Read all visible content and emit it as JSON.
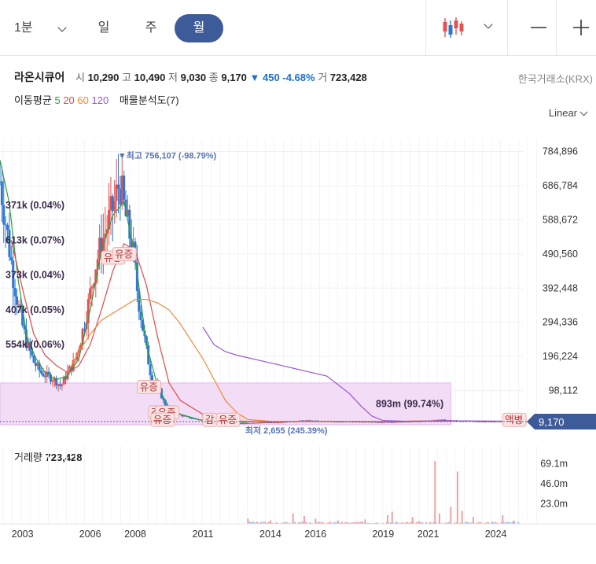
{
  "toolbar": {
    "period_select": "1분",
    "tabs": [
      "일",
      "주",
      "월"
    ],
    "active_tab": "월"
  },
  "stock": {
    "name": "라온시큐어",
    "open_label": "시",
    "open": "10,290",
    "high_label": "고",
    "high": "10,490",
    "low_label": "저",
    "low": "9,030",
    "close_label": "종",
    "close": "9,170",
    "change_arrow": "▼",
    "change": "450",
    "change_pct": "-4.68%",
    "volume_label": "거",
    "volume": "723,428",
    "exchange": "한국거래소(KRX)"
  },
  "indicators": {
    "ma_label": "이동평균",
    "ma_periods": [
      "5",
      "20",
      "60",
      "120"
    ],
    "ma_colors": [
      "#2e9d3c",
      "#e24a4a",
      "#f08a34",
      "#9a54d6"
    ],
    "profile_label": "매물분석도(7)"
  },
  "scale_mode": "Linear",
  "colors": {
    "up": "#e05353",
    "down": "#2f78d2",
    "accent": "#3d5a99",
    "profile": "#f3dcf5"
  },
  "chart_data": {
    "type": "candlestick",
    "interval": "monthly",
    "x_ticks": [
      "2003",
      "2006",
      "2008",
      "2011",
      "2014",
      "2016",
      "2019",
      "2021",
      "2024"
    ],
    "x_tick_years": [
      2003,
      2006,
      2008,
      2011,
      2014,
      2016,
      2019,
      2021,
      2024
    ],
    "x_range": [
      2002.0,
      2025.2
    ],
    "y_ticks": [
      "784,896",
      "686,784",
      "588,672",
      "490,560",
      "392,448",
      "294,336",
      "196,224",
      "98,112"
    ],
    "y_tick_values": [
      784896,
      686784,
      588672,
      490560,
      392448,
      294336,
      196224,
      98112
    ],
    "y_range": [
      0,
      820000
    ],
    "last_price": "9,170",
    "last_price_value": 9170,
    "high_annotation": "▼최고 756,107 (-98.79%)",
    "high_point": {
      "year": 2007.3,
      "value": 756107
    },
    "low_annotation": "최저 2,655 (245.39%)",
    "low_point": {
      "year": 2012.6,
      "value": 2655
    },
    "price_path": [
      [
        2002.0,
        700000
      ],
      [
        2002.3,
        560000
      ],
      [
        2002.6,
        420000
      ],
      [
        2002.9,
        310000
      ],
      [
        2003.2,
        230000
      ],
      [
        2003.5,
        180000
      ],
      [
        2003.8,
        150000
      ],
      [
        2004.1,
        140000
      ],
      [
        2004.4,
        130000
      ],
      [
        2004.7,
        110000
      ],
      [
        2005.0,
        150000
      ],
      [
        2005.3,
        180000
      ],
      [
        2005.6,
        250000
      ],
      [
        2005.9,
        340000
      ],
      [
        2006.2,
        450000
      ],
      [
        2006.5,
        520000
      ],
      [
        2006.8,
        580000
      ],
      [
        2007.1,
        640000
      ],
      [
        2007.3,
        700000
      ],
      [
        2007.6,
        590000
      ],
      [
        2007.9,
        500000
      ],
      [
        2008.1,
        380000
      ],
      [
        2008.4,
        250000
      ],
      [
        2008.7,
        140000
      ],
      [
        2009.0,
        110000
      ],
      [
        2009.3,
        60000
      ],
      [
        2009.6,
        40000
      ],
      [
        2009.9,
        30000
      ],
      [
        2010.3,
        22000
      ],
      [
        2010.8,
        15000
      ],
      [
        2011.3,
        10000
      ],
      [
        2011.8,
        7000
      ],
      [
        2012.3,
        5000
      ],
      [
        2012.8,
        4000
      ],
      [
        2013.5,
        6000
      ],
      [
        2014.5,
        8000
      ],
      [
        2015.5,
        12000
      ],
      [
        2016.5,
        10000
      ],
      [
        2017.5,
        9000
      ],
      [
        2018.5,
        8000
      ],
      [
        2019.5,
        8000
      ],
      [
        2020.5,
        10000
      ],
      [
        2021.5,
        14000
      ],
      [
        2022.5,
        11000
      ],
      [
        2023.5,
        9500
      ],
      [
        2024.5,
        9200
      ],
      [
        2025.0,
        9170
      ]
    ],
    "ma_lines": [
      {
        "period": "5",
        "points": [
          [
            2002.0,
            760000
          ],
          [
            2002.4,
            640000
          ],
          [
            2002.8,
            420000
          ],
          [
            2003.2,
            250000
          ],
          [
            2003.6,
            190000
          ],
          [
            2004.0,
            150000
          ],
          [
            2004.5,
            130000
          ],
          [
            2005.0,
            140000
          ],
          [
            2005.5,
            190000
          ],
          [
            2006.0,
            330000
          ],
          [
            2006.5,
            500000
          ],
          [
            2007.0,
            600000
          ],
          [
            2007.5,
            640000
          ],
          [
            2008.0,
            480000
          ],
          [
            2008.5,
            230000
          ],
          [
            2009.0,
            110000
          ],
          [
            2009.5,
            50000
          ],
          [
            2010.0,
            30000
          ],
          [
            2011.0,
            12000
          ],
          [
            2013.0,
            5000
          ]
        ]
      },
      {
        "period": "20",
        "points": [
          [
            2002.5,
            530000
          ],
          [
            2003.0,
            390000
          ],
          [
            2003.5,
            260000
          ],
          [
            2004.0,
            200000
          ],
          [
            2004.5,
            170000
          ],
          [
            2005.0,
            150000
          ],
          [
            2005.5,
            170000
          ],
          [
            2006.0,
            230000
          ],
          [
            2006.5,
            330000
          ],
          [
            2007.0,
            440000
          ],
          [
            2007.5,
            520000
          ],
          [
            2008.0,
            500000
          ],
          [
            2008.5,
            400000
          ],
          [
            2009.0,
            250000
          ],
          [
            2009.5,
            120000
          ],
          [
            2010.0,
            70000
          ],
          [
            2011.0,
            30000
          ],
          [
            2012.0,
            12000
          ],
          [
            2014.0,
            8000
          ],
          [
            2016.0,
            10000
          ],
          [
            2019.0,
            9000
          ],
          [
            2021.0,
            11000
          ],
          [
            2024.0,
            10000
          ],
          [
            2025.0,
            9800
          ]
        ]
      },
      {
        "period": "60",
        "points": [
          [
            2005.0,
            150000
          ],
          [
            2005.5,
            210000
          ],
          [
            2006.0,
            260000
          ],
          [
            2006.5,
            300000
          ],
          [
            2007.0,
            320000
          ],
          [
            2007.5,
            340000
          ],
          [
            2008.0,
            360000
          ],
          [
            2008.5,
            360000
          ],
          [
            2009.0,
            350000
          ],
          [
            2009.5,
            330000
          ],
          [
            2010.0,
            290000
          ],
          [
            2010.5,
            240000
          ],
          [
            2011.0,
            190000
          ],
          [
            2011.5,
            130000
          ],
          [
            2012.0,
            70000
          ],
          [
            2012.5,
            35000
          ],
          [
            2013.0,
            15000
          ],
          [
            2014.0,
            10000
          ],
          [
            2016.0,
            9000
          ],
          [
            2019.0,
            9500
          ],
          [
            2021.0,
            11000
          ],
          [
            2024.0,
            10000
          ],
          [
            2025.0,
            10000
          ]
        ]
      },
      {
        "period": "120",
        "points": [
          [
            2011.0,
            280000
          ],
          [
            2011.5,
            230000
          ],
          [
            2012.0,
            210000
          ],
          [
            2012.5,
            200000
          ],
          [
            2013.5,
            185000
          ],
          [
            2014.5,
            170000
          ],
          [
            2015.5,
            155000
          ],
          [
            2016.5,
            140000
          ],
          [
            2017.5,
            90000
          ],
          [
            2018.0,
            55000
          ],
          [
            2018.5,
            25000
          ],
          [
            2019.0,
            12000
          ],
          [
            2020.0,
            10000
          ],
          [
            2022.0,
            11000
          ],
          [
            2025.0,
            10500
          ]
        ]
      }
    ],
    "volume_profile": [
      {
        "label": "371k (0.04%)",
        "value": 630000
      },
      {
        "label": "613k (0.07%)",
        "value": 530000
      },
      {
        "label": "373k (0.04%)",
        "value": 430000
      },
      {
        "label": "407k (0.05%)",
        "value": 330000
      },
      {
        "label": "554k (0.06%)",
        "value": 230000
      },
      {
        "label": "893m (99.74%)",
        "value": 60000
      }
    ],
    "annotations": [
      {
        "text": "유증",
        "year": 2006.6,
        "value": 470000
      },
      {
        "text": "유증",
        "year": 2007.1,
        "value": 480000
      },
      {
        "text": "유증",
        "year": 2008.2,
        "value": 98000
      },
      {
        "text": "감",
        "year": 2008.7,
        "value": 25000
      },
      {
        "text": "유증",
        "year": 2009.0,
        "value": 25000
      },
      {
        "text": "유증",
        "year": 2008.8,
        "value": 4000
      },
      {
        "text": "감",
        "year": 2011.1,
        "value": 4000
      },
      {
        "text": "유증",
        "year": 2011.7,
        "value": 4000
      },
      {
        "text": "액병",
        "year": 2024.4,
        "value": 4000
      }
    ],
    "volume": {
      "title": "거래량",
      "last": "723,428",
      "y_ticks": [
        "69.1m",
        "46.0m",
        "23.0m"
      ],
      "y_tick_values": [
        69.1,
        46.0,
        23.0
      ],
      "y_range": [
        0,
        82
      ],
      "unit": "m",
      "spikes": [
        [
          2013.0,
          6
        ],
        [
          2014.0,
          4
        ],
        [
          2015.0,
          12
        ],
        [
          2015.5,
          9
        ],
        [
          2016.0,
          6
        ],
        [
          2017.0,
          4
        ],
        [
          2018.2,
          5
        ],
        [
          2019.2,
          10
        ],
        [
          2019.4,
          14
        ],
        [
          2020.3,
          8
        ],
        [
          2020.6,
          3
        ],
        [
          2021.3,
          72
        ],
        [
          2021.5,
          12
        ],
        [
          2022.0,
          20
        ],
        [
          2022.3,
          60
        ],
        [
          2022.5,
          15
        ],
        [
          2023.0,
          8
        ],
        [
          2024.3,
          10
        ],
        [
          2024.8,
          4
        ]
      ]
    }
  }
}
